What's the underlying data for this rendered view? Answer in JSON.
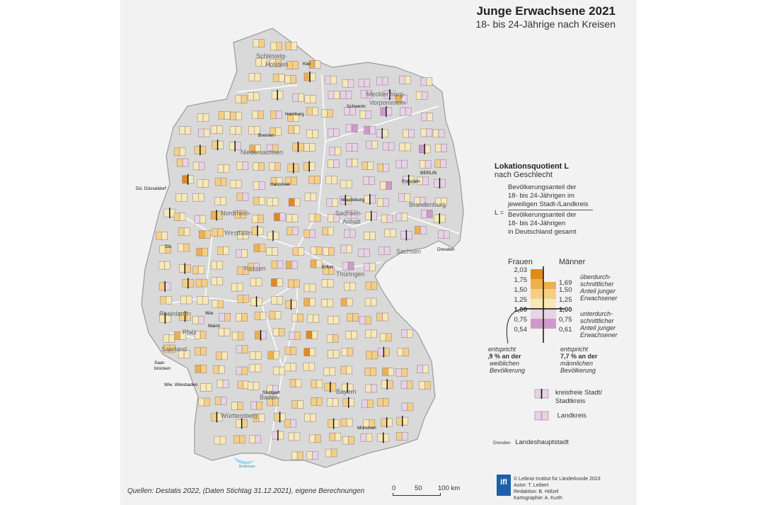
{
  "title": "Junge Erwachsene 2021",
  "subtitle": "18- bis 24-Jährige nach Kreisen",
  "legend": {
    "heading": "Lokationsquotient  L",
    "subheading": "nach Geschlecht",
    "formula_lhs": "L =",
    "numerator": [
      "Bevölkerungsanteil der",
      "18- bis 24-Jährigen im",
      "jeweiligen Stadt-/Landkreis"
    ],
    "denominator": [
      "Bevölkerungsanteil der",
      "18- bis 24-Jährigen",
      "in Deutschland gesamt"
    ],
    "women_label": "Frauen",
    "men_label": "Männer",
    "women_ticks": [
      "2,03",
      "1,75",
      "1,50",
      "1,25",
      "1,00",
      "0,75",
      "0,54"
    ],
    "men_ticks": [
      "1,69",
      "1,50",
      "1,25",
      "1,00",
      "0,75",
      "0,61"
    ],
    "above": [
      "überdurch-",
      "schnittlicher",
      "Anteil junger",
      "Erwachsener"
    ],
    "below": [
      "unterdurch-",
      "schnittlicher",
      "Anteil junger",
      "Erwachsener"
    ],
    "women_note": [
      "entspricht",
      "6,9 % an der",
      "weiblichen",
      "Bevölkerung"
    ],
    "men_note": [
      "entspricht",
      "7,7 % an der",
      "männlichen",
      "Bevölkerung"
    ],
    "colors": [
      "#e08a1c",
      "#eeb04f",
      "#f5cf86",
      "#f7e9b6",
      "#e8d3e6",
      "#cf99c8"
    ],
    "kreisfrei_label": "kreisfreie Stadt/ Stadtkreis",
    "landkreis_label": "Landkreis",
    "capital_sample": "Dresden",
    "capital_label": "Landeshauptstadt"
  },
  "states": [
    "Schleswig-",
    "Holstein",
    "Mecklenburg-",
    "Vorpommern",
    "Niedersachsen",
    "Brandenburg",
    "Sachsen-",
    "Anhalt",
    "Nordrhein-",
    "Westfalen",
    "Hessen",
    "Thüringen",
    "Sachsen",
    "Rheinland-",
    "Pfalz",
    "Saarland",
    "Baden-",
    "Württemberg",
    "Bayern"
  ],
  "cities": [
    "Kiel",
    "Schwerin",
    "Hamburg",
    "Bremen",
    "BERLIN",
    "Potsdam",
    "Hannover",
    "Magdeburg",
    "Düsseldorf",
    "Dü.",
    "Erfurt",
    "Dresden",
    "Wie.",
    "Mainz",
    "Saar-",
    "brücken",
    "Wie. Wiesbaden",
    "Dü.  Düsseldorf",
    "Stuttgart",
    "München",
    "Bodensee"
  ],
  "source": "Quellen: Destatis 2022, (Daten Stichtag 31.12.2021), eigene Berechnungen",
  "scale": {
    "ticks": [
      "0",
      "50",
      "100 km"
    ]
  },
  "credits": {
    "logo": "ifl",
    "lines": [
      "© Leibniz-Institut für Länderkunde 2023",
      "Autor: T. Leibert",
      "Redaktion: B. Hölzel",
      "Kartographie: A. Kurth"
    ]
  }
}
